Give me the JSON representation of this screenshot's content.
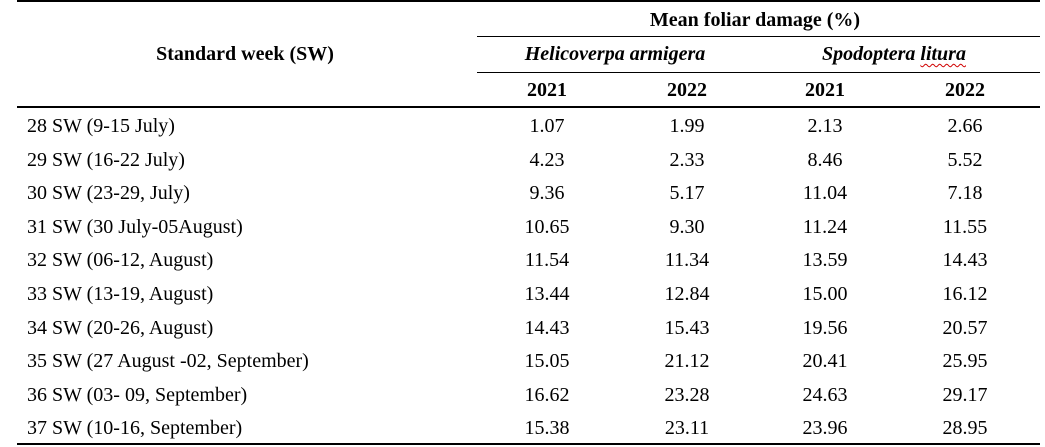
{
  "table": {
    "stub_header": "Standard week (SW)",
    "group_header": "Mean foliar damage (%)",
    "species": [
      {
        "genus": "Helicoverpa",
        "epithet": "armigera",
        "years": [
          "2021",
          "2022"
        ]
      },
      {
        "genus": "Spodoptera",
        "epithet": "litura",
        "years": [
          "2021",
          "2022"
        ]
      }
    ],
    "rows": [
      {
        "week": "28 SW (9-15 July)",
        "values": [
          "1.07",
          "1.99",
          "2.13",
          "2.66"
        ]
      },
      {
        "week": "29 SW (16-22 July)",
        "values": [
          "4.23",
          "2.33",
          "8.46",
          "5.52"
        ]
      },
      {
        "week": "30 SW (23-29, July)",
        "values": [
          "9.36",
          "5.17",
          "11.04",
          "7.18"
        ]
      },
      {
        "week": "31 SW (30 July-05August)",
        "values": [
          "10.65",
          "9.30",
          "11.24",
          "11.55"
        ]
      },
      {
        "week": "32 SW (06-12, August)",
        "values": [
          "11.54",
          "11.34",
          "13.59",
          "14.43"
        ]
      },
      {
        "week": "33 SW (13-19, August)",
        "values": [
          "13.44",
          "12.84",
          "15.00",
          "16.12"
        ]
      },
      {
        "week": "34 SW (20-26, August)",
        "values": [
          "14.43",
          "15.43",
          "19.56",
          "20.57"
        ]
      },
      {
        "week": "35 SW (27 August -02, September)",
        "values": [
          "15.05",
          "21.12",
          "20.41",
          "25.95"
        ]
      },
      {
        "week": "36 SW (03- 09, September)",
        "values": [
          "16.62",
          "23.28",
          "24.63",
          "29.17"
        ]
      },
      {
        "week": "37 SW (10-16, September)",
        "values": [
          "15.38",
          "23.11",
          "23.96",
          "28.95"
        ]
      }
    ]
  }
}
